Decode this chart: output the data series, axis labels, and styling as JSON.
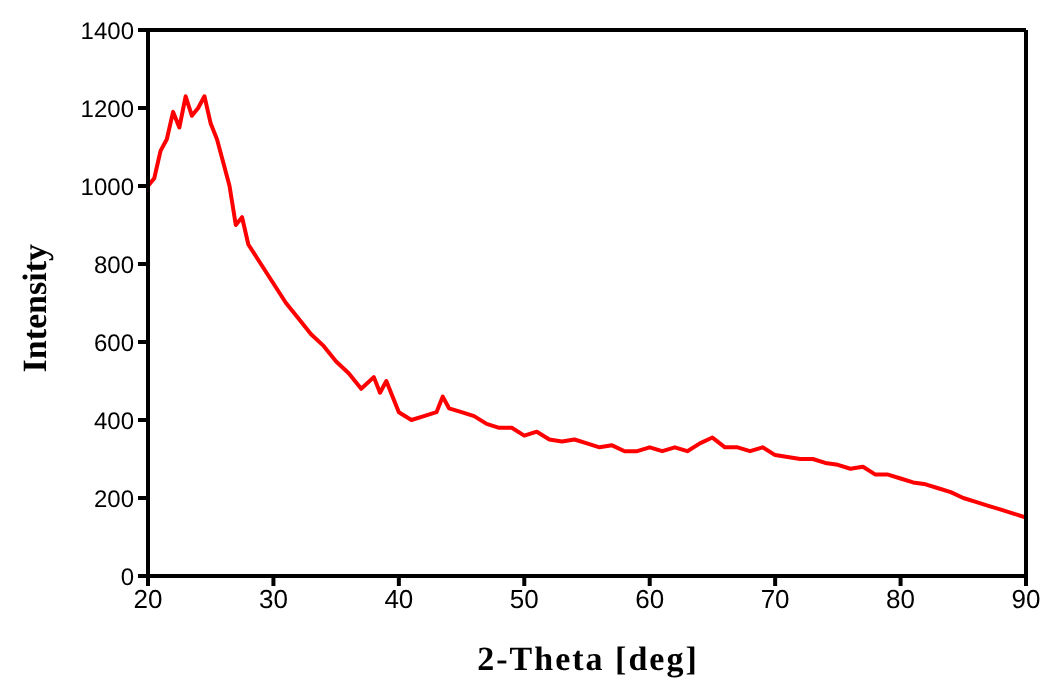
{
  "chart_data": {
    "type": "line",
    "xlabel": "2-Theta [deg]",
    "ylabel": "Intensity",
    "x": [
      20,
      20.5,
      21,
      21.5,
      22,
      22.5,
      23,
      23.5,
      24,
      24.5,
      25,
      25.5,
      26,
      26.5,
      27,
      27.5,
      28,
      29,
      30,
      31,
      32,
      33,
      34,
      35,
      36,
      37,
      38,
      38.5,
      39,
      40,
      41,
      42,
      43,
      43.5,
      44,
      45,
      46,
      47,
      48,
      49,
      50,
      51,
      52,
      53,
      54,
      55,
      56,
      57,
      58,
      59,
      60,
      61,
      62,
      63,
      64,
      65,
      66,
      67,
      68,
      69,
      70,
      71,
      72,
      73,
      74,
      75,
      76,
      77,
      78,
      79,
      80,
      81,
      82,
      83,
      84,
      85,
      86,
      87,
      88,
      89,
      90
    ],
    "series": [
      {
        "color": "#ff0000",
        "values": [
          1000,
          1020,
          1090,
          1120,
          1190,
          1150,
          1230,
          1180,
          1200,
          1230,
          1160,
          1120,
          1060,
          1000,
          900,
          920,
          850,
          800,
          750,
          700,
          660,
          620,
          590,
          550,
          520,
          480,
          510,
          470,
          500,
          420,
          400,
          410,
          420,
          460,
          430,
          420,
          410,
          390,
          380,
          380,
          360,
          370,
          350,
          345,
          350,
          340,
          330,
          335,
          320,
          320,
          330,
          320,
          330,
          320,
          340,
          355,
          330,
          330,
          320,
          330,
          310,
          305,
          300,
          300,
          290,
          285,
          275,
          280,
          260,
          260,
          250,
          240,
          235,
          225,
          215,
          200,
          190,
          180,
          170,
          160,
          150
        ]
      }
    ],
    "xlim": [
      20,
      90
    ],
    "ylim": [
      0,
      1400
    ],
    "xticks": [
      20,
      30,
      40,
      50,
      60,
      70,
      80,
      90
    ],
    "yticks": [
      0,
      200,
      400,
      600,
      800,
      1000,
      1200,
      1400
    ],
    "marker": "none",
    "line_style": "solid"
  }
}
